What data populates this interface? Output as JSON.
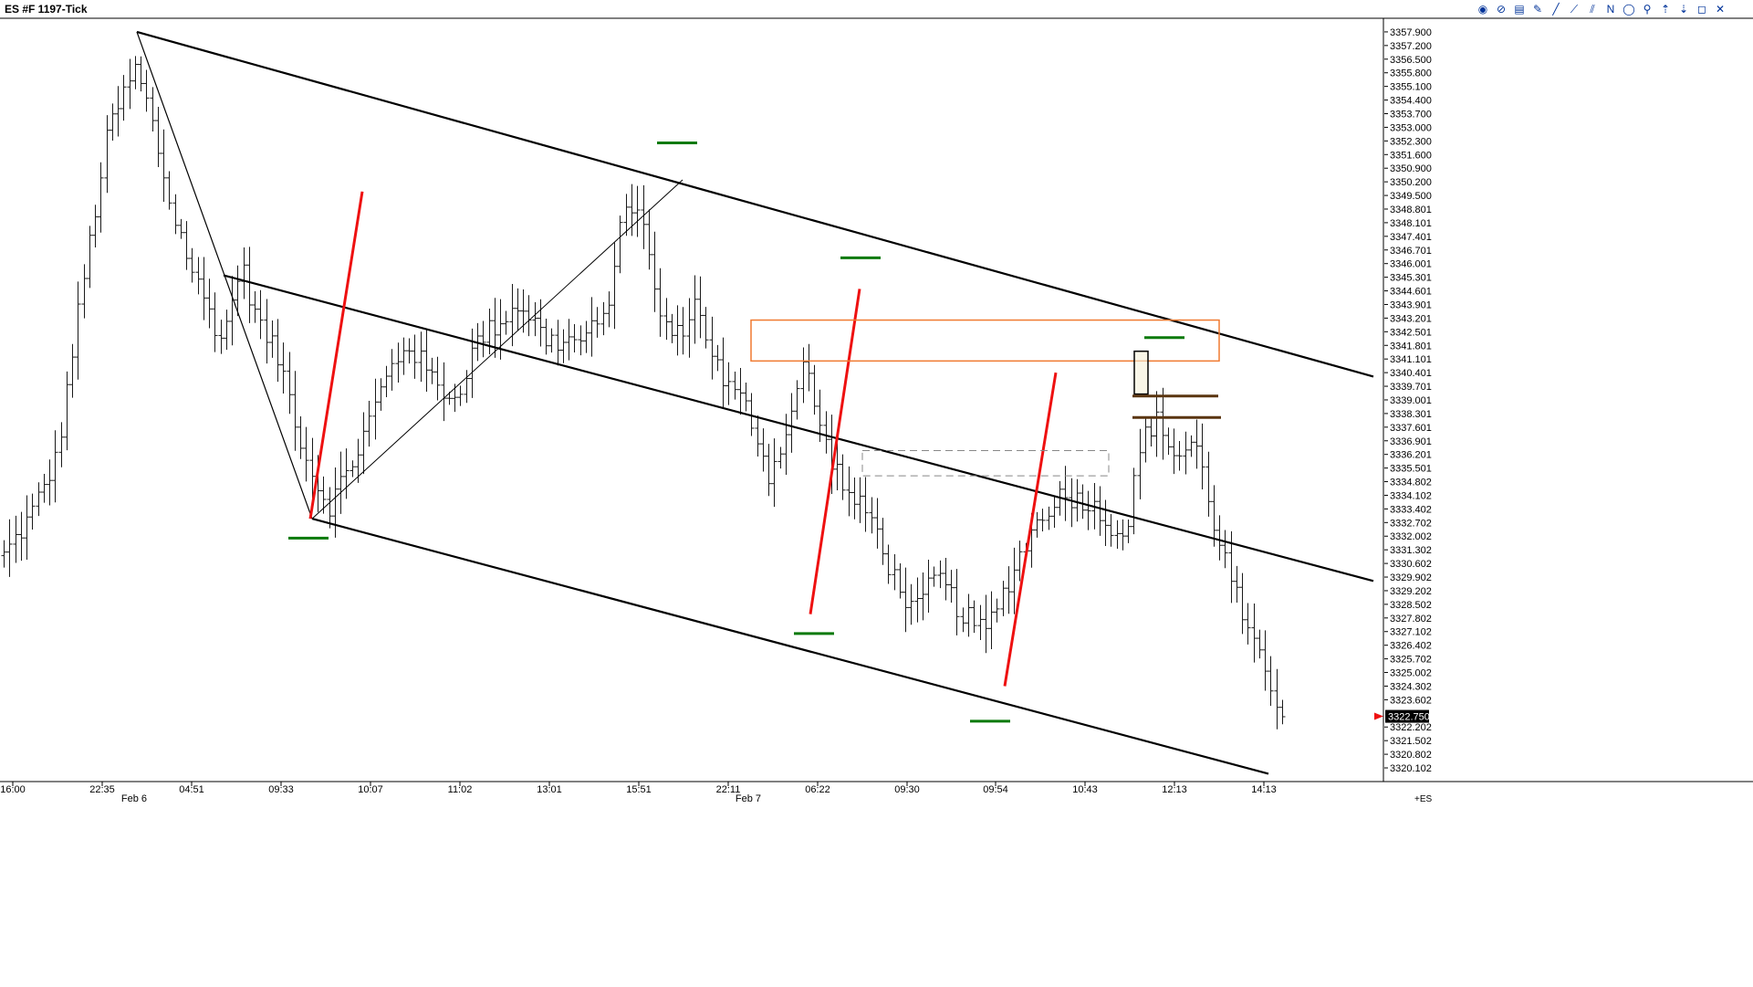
{
  "window": {
    "title": "ES #F 1197-Tick",
    "toolbar_icons": [
      "cursor-icon",
      "zoom-icon",
      "data-box-icon",
      "pencil-icon",
      "line-icon",
      "ray-icon",
      "extended-line-icon",
      "text-n-icon",
      "ellipse-icon",
      "fib-icon",
      "arrow-up-icon",
      "arrow-down-icon",
      "square-icon",
      "close-icon"
    ],
    "toolbar_glyphs": [
      "◉",
      "⊘",
      "▤",
      "✎",
      "╱",
      "⟋",
      "⫽",
      "N",
      "◯",
      "⚲",
      "⇡",
      "⇣",
      "◻",
      "✕"
    ]
  },
  "colors": {
    "price_bars": "#1a1a1a",
    "trendlines": "#000000",
    "impulse_lines": "#ee1111",
    "green_markers": "#0a7a0a",
    "orange_zone": "#f07a30",
    "brown_levels": "#5a3510",
    "gray_zone": "#888888",
    "current_price_bg": "#000000",
    "current_price_arrow": "#ee1111"
  },
  "chart_data": {
    "type": "bar",
    "subtype": "ohlc-tick-chart",
    "symbol": "ES #F",
    "interval": "1197-Tick",
    "ylim": [
      3319.4,
      3358.6
    ],
    "y_ticks": [
      "3357.900",
      "3357.200",
      "3356.500",
      "3355.800",
      "3355.100",
      "3354.400",
      "3353.700",
      "3353.000",
      "3352.300",
      "3351.600",
      "3350.900",
      "3350.200",
      "3349.500",
      "3348.801",
      "3348.101",
      "3347.401",
      "3346.701",
      "3346.001",
      "3345.301",
      "3344.601",
      "3343.901",
      "3343.201",
      "3342.501",
      "3341.801",
      "3341.101",
      "3340.401",
      "3339.701",
      "3339.001",
      "3338.301",
      "3337.601",
      "3336.901",
      "3336.201",
      "3335.501",
      "3334.802",
      "3334.102",
      "3333.402",
      "3332.702",
      "3332.002",
      "3331.302",
      "3330.602",
      "3329.902",
      "3329.202",
      "3328.502",
      "3327.802",
      "3327.102",
      "3326.402",
      "3325.702",
      "3325.002",
      "3324.302",
      "3323.602",
      "3322.202",
      "3321.502",
      "3320.802",
      "3320.102"
    ],
    "x_ticks": [
      "16:00",
      "22:35",
      "04:51",
      "09:33",
      "10:07",
      "11:02",
      "13:01",
      "15:51",
      "22:11",
      "06:22",
      "09:30",
      "09:54",
      "10:43",
      "12:13",
      "14:13"
    ],
    "date_labels": [
      "Feb 6",
      "Feb 7"
    ],
    "bar_count": 225,
    "anchors": [
      [
        0,
        3331
      ],
      [
        6,
        3333
      ],
      [
        12,
        3336
      ],
      [
        18,
        3345
      ],
      [
        24,
        3353
      ],
      [
        30,
        3356
      ],
      [
        33,
        3354
      ],
      [
        38,
        3349
      ],
      [
        44,
        3345
      ],
      [
        50,
        3342
      ],
      [
        54,
        3346
      ],
      [
        58,
        3343
      ],
      [
        63,
        3341
      ],
      [
        69,
        3336
      ],
      [
        74,
        3333.5
      ],
      [
        80,
        3336
      ],
      [
        87,
        3340
      ],
      [
        92,
        3342
      ],
      [
        98,
        3340
      ],
      [
        103,
        3339
      ],
      [
        108,
        3342
      ],
      [
        113,
        3343
      ],
      [
        118,
        3344
      ],
      [
        124,
        3342
      ],
      [
        131,
        3342
      ],
      [
        137,
        3343
      ],
      [
        142,
        3349
      ],
      [
        145,
        3349
      ],
      [
        149,
        3344
      ],
      [
        153,
        3342
      ],
      [
        158,
        3344
      ],
      [
        164,
        3340
      ],
      [
        170,
        3338.5
      ],
      [
        175,
        3335
      ],
      [
        180,
        3338.5
      ],
      [
        183,
        3341
      ],
      [
        187,
        3337
      ],
      [
        193,
        3334
      ],
      [
        198,
        3333
      ],
      [
        203,
        3330
      ],
      [
        208,
        3328
      ],
      [
        213,
        3330
      ],
      [
        219,
        3328
      ],
      [
        224,
        3327
      ],
      [
        228,
        3329
      ],
      [
        234,
        3332
      ],
      [
        240,
        3334
      ],
      [
        246,
        3334
      ],
      [
        251,
        3333
      ],
      [
        256,
        3332
      ],
      [
        260,
        3337
      ],
      [
        263,
        3338
      ],
      [
        268,
        3336
      ],
      [
        272,
        3337
      ],
      [
        276,
        3333
      ],
      [
        280,
        3330
      ],
      [
        284,
        3327
      ],
      [
        288,
        3325
      ],
      [
        292,
        3323
      ]
    ],
    "current_price": "3322.750",
    "price_axis_symbol": "+ES",
    "annotations": {
      "channel_upper": [
        [
          150,
          3357.9
        ],
        [
          1505,
          3340.2
        ]
      ],
      "channel_mid": [
        [
          245,
          3345.4
        ],
        [
          1505,
          3329.7
        ]
      ],
      "channel_lower": [
        [
          342,
          3332.9
        ],
        [
          1390,
          3319.8
        ]
      ],
      "swing_line_1": [
        [
          150,
          3357.9
        ],
        [
          342,
          3332.9
        ]
      ],
      "swing_line_2": [
        [
          342,
          3332.9
        ],
        [
          748,
          3350.3
        ]
      ],
      "impulse_lines": [
        [
          [
            340,
            3332.9
          ],
          [
            397,
            3349.7
          ]
        ],
        [
          [
            888,
            3328.0
          ],
          [
            942,
            3344.7
          ]
        ],
        [
          [
            1101,
            3324.3
          ],
          [
            1157,
            3340.4
          ]
        ]
      ],
      "green_marks": [
        [
          742,
          3352.2
        ],
        [
          943,
          3346.3
        ],
        [
          338,
          3331.9
        ],
        [
          892,
          3327.0
        ],
        [
          1085,
          3322.5
        ],
        [
          1276,
          3342.2
        ]
      ],
      "orange_zone": {
        "x": [
          823,
          1336
        ],
        "y": [
          3343.1,
          3341.0
        ]
      },
      "gray_zone": {
        "x": [
          945,
          1215
        ],
        "y": [
          3336.4,
          3335.1
        ]
      },
      "highlight_box": {
        "x": [
          1243,
          1258
        ],
        "y": [
          3341.5,
          3339.3
        ]
      },
      "brown_levels": [
        [
          1241,
          1335,
          3339.2
        ],
        [
          1241,
          1338,
          3338.1
        ]
      ]
    }
  }
}
